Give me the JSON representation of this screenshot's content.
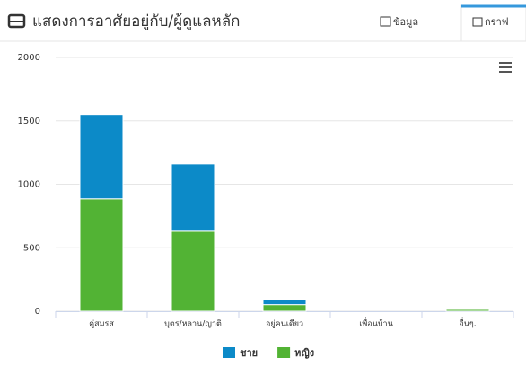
{
  "header": {
    "title": "แสดงการอาศัยอยู่กับ/ผู้ดูแลหลัก",
    "tabs": [
      "ข้อมูล",
      "กราฟ"
    ]
  },
  "chart_data": {
    "type": "stacked-bar",
    "categories": [
      "คู่สมรส",
      "บุตร/หลาน/ญาติ",
      "อยู่คนเดียว",
      "เพื่อนบ้าน",
      "อื่นๆ."
    ],
    "series": [
      {
        "name": "ชาย",
        "color": "#0c8ac8",
        "values": [
          665,
          530,
          40,
          0,
          2
        ]
      },
      {
        "name": "หญิง",
        "color": "#52b334",
        "values": [
          885,
          630,
          52,
          0,
          15
        ]
      }
    ],
    "ylim": [
      0,
      2000
    ],
    "yticks": [
      0,
      500,
      1000,
      1500,
      2000
    ],
    "grid": true,
    "legend": "bottom"
  }
}
